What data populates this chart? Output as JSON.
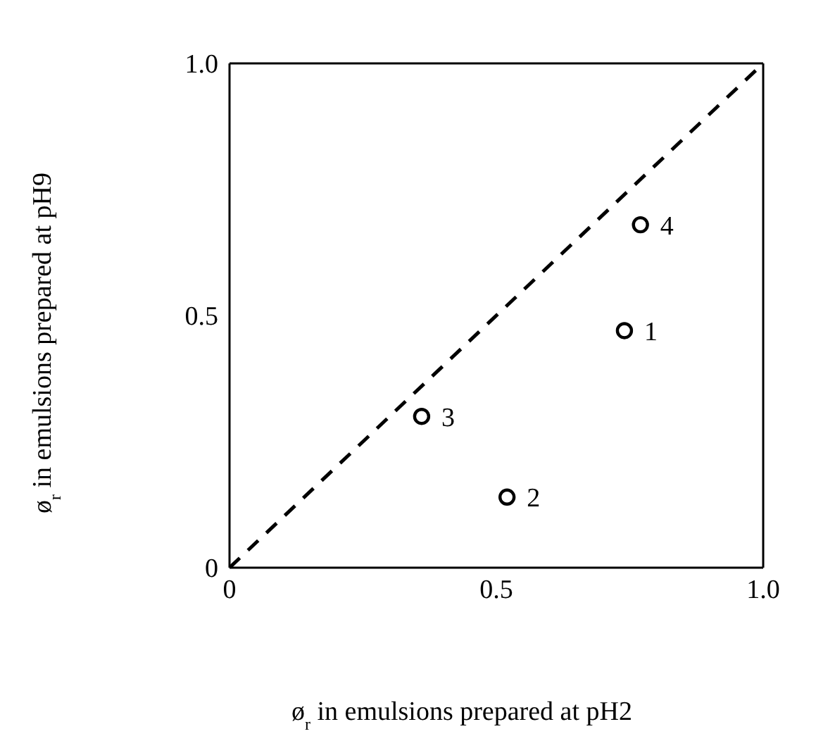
{
  "chart_data": {
    "type": "scatter",
    "xlabel": "ø$_{r}$ in emulsions prepared at pH2",
    "ylabel": "ø$_{r}$ in emulsions prepared at pH9",
    "xlim": [
      0,
      1
    ],
    "ylim": [
      0,
      1
    ],
    "xticks": [
      0,
      0.5,
      {
        "value": 1,
        "label": "1.0"
      }
    ],
    "yticks": [
      0,
      0.5,
      {
        "value": 1,
        "label": "1.0"
      }
    ],
    "marker": "circle",
    "series": [
      {
        "color": "#000000",
        "x": [
          0.74,
          0.52,
          0.36,
          0.77
        ],
        "values": [
          0.47,
          0.14,
          0.3,
          0.68
        ]
      },
      {
        "type": "line",
        "color": "#000000",
        "line_style": "dashed",
        "marker": "none",
        "x": [
          0,
          1
        ],
        "values": [
          0,
          1
        ]
      }
    ],
    "annotations": [
      {
        "text": "1",
        "x": 0.74,
        "y": 0.47
      },
      {
        "text": "2",
        "x": 0.52,
        "y": 0.14
      },
      {
        "text": "3",
        "x": 0.36,
        "y": 0.3
      },
      {
        "text": "4",
        "x": 0.77,
        "y": 0.68
      }
    ]
  }
}
